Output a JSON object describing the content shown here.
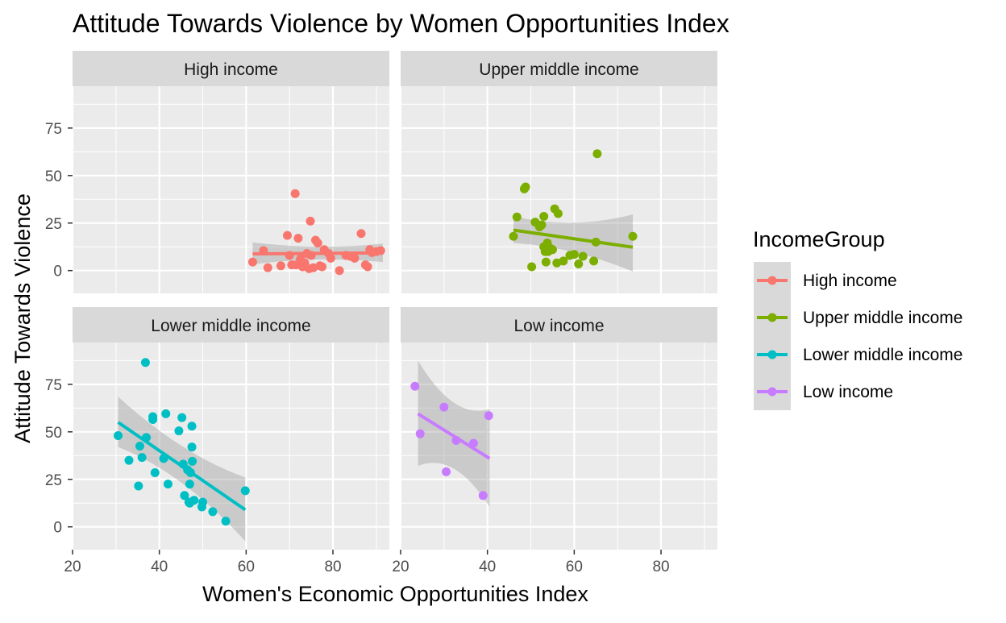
{
  "chart_data": {
    "type": "scatter",
    "title": "Attitude Towards Violence by Women Opportunities Index",
    "xlabel": "Women's Economic Opportunities Index",
    "ylabel": "Attitude Towards Violence",
    "xlim": [
      20,
      93
    ],
    "ylim": [
      -12,
      97
    ],
    "x_ticks": [
      20,
      40,
      60,
      80
    ],
    "y_ticks": [
      0,
      25,
      50,
      75
    ],
    "x_tick_labels": [
      "20",
      "40",
      "60",
      "80"
    ],
    "y_tick_labels": [
      "0",
      "25",
      "50",
      "75"
    ],
    "grid": true,
    "legend": {
      "title": "IncomeGroup",
      "position": "right"
    },
    "colors": {
      "High income": "#F8766D",
      "Upper middle income": "#7CAE00",
      "Lower middle income": "#00BFC4",
      "Low income": "#C77CFF",
      "panel_bg": "#EBEBEB",
      "strip_bg": "#D9D9D9",
      "ribbon": "#999999"
    },
    "series": [
      {
        "name": "High income",
        "fit": {
          "x": [
            61.5,
            91.5
          ],
          "y": [
            8.8,
            9.3
          ],
          "ribbon_lo": [
            3.2,
            4.5
          ],
          "ribbon_hi": [
            14.8,
            14.2
          ],
          "ribbon_mid_lo": 7.8,
          "ribbon_mid_hi": 10.6
        },
        "points": [
          [
            61.5,
            4.5
          ],
          [
            64,
            10.5
          ],
          [
            65,
            1.5
          ],
          [
            68,
            2.5
          ],
          [
            69.5,
            18.5
          ],
          [
            70,
            8
          ],
          [
            70.5,
            3
          ],
          [
            71.3,
            40.5
          ],
          [
            71.5,
            3
          ],
          [
            72,
            17
          ],
          [
            72.5,
            6
          ],
          [
            73,
            2
          ],
          [
            73.5,
            4
          ],
          [
            74,
            9
          ],
          [
            74.5,
            1
          ],
          [
            74.8,
            26
          ],
          [
            75,
            8
          ],
          [
            75.5,
            1.5
          ],
          [
            76,
            16
          ],
          [
            76.5,
            14.5
          ],
          [
            77,
            2.5
          ],
          [
            77.5,
            2
          ],
          [
            78,
            11
          ],
          [
            79,
            9
          ],
          [
            79.5,
            6.5
          ],
          [
            81.5,
            0
          ],
          [
            83,
            8
          ],
          [
            84,
            7.5
          ],
          [
            85,
            6.5
          ],
          [
            86.5,
            19.5
          ],
          [
            87.5,
            3
          ],
          [
            88,
            2
          ],
          [
            88.5,
            11
          ],
          [
            89,
            9.5
          ],
          [
            90,
            10
          ],
          [
            91,
            10.5
          ]
        ]
      },
      {
        "name": "Upper middle income",
        "fit": {
          "x": [
            46,
            73.5
          ],
          "y": [
            21.3,
            12.3
          ],
          "ribbon_lo": [
            14.5,
            -0.5
          ],
          "ribbon_hi": [
            28.5,
            29.5
          ],
          "ribbon_mid_lo": 12.5,
          "ribbon_mid_hi": 21.5
        },
        "points": [
          [
            46,
            18
          ],
          [
            46.8,
            28.2
          ],
          [
            48.5,
            43
          ],
          [
            48.8,
            44
          ],
          [
            50.2,
            2
          ],
          [
            51,
            25.5
          ],
          [
            52,
            23
          ],
          [
            52.5,
            24
          ],
          [
            53,
            12.5
          ],
          [
            53,
            28.5
          ],
          [
            53.3,
            10
          ],
          [
            53.5,
            4.5
          ],
          [
            53.8,
            14.5
          ],
          [
            54,
            10
          ],
          [
            54.3,
            12
          ],
          [
            54.5,
            11.5
          ],
          [
            55,
            11
          ],
          [
            55.5,
            32.5
          ],
          [
            56,
            4
          ],
          [
            56.3,
            30
          ],
          [
            57.5,
            5
          ],
          [
            59,
            8
          ],
          [
            60,
            8.5
          ],
          [
            61,
            3.5
          ],
          [
            62,
            7.5
          ],
          [
            64.5,
            5
          ],
          [
            65,
            15
          ],
          [
            65.3,
            61.5
          ],
          [
            73.5,
            18
          ]
        ]
      },
      {
        "name": "Lower middle income",
        "fit": {
          "x": [
            30.5,
            59.8
          ],
          "y": [
            55,
            9
          ],
          "ribbon_lo": [
            42,
            -7.5
          ],
          "ribbon_hi": [
            68.5,
            26
          ],
          "ribbon_mid_lo": 29,
          "ribbon_mid_hi": 38
        },
        "points": [
          [
            30.5,
            48
          ],
          [
            33,
            35
          ],
          [
            35.2,
            21.5
          ],
          [
            35.5,
            42.5
          ],
          [
            36,
            36.5
          ],
          [
            36.8,
            86.5
          ],
          [
            37,
            47
          ],
          [
            38.5,
            58
          ],
          [
            38.5,
            56.5
          ],
          [
            39,
            28.5
          ],
          [
            41,
            36
          ],
          [
            41.5,
            59.5
          ],
          [
            42,
            22.5
          ],
          [
            44.5,
            50.5
          ],
          [
            45.2,
            57.5
          ],
          [
            45.5,
            33
          ],
          [
            45.8,
            16.5
          ],
          [
            46.5,
            30
          ],
          [
            46.8,
            13
          ],
          [
            47,
            22.5
          ],
          [
            47,
            12.5
          ],
          [
            47.2,
            28.5
          ],
          [
            47.5,
            42
          ],
          [
            47.5,
            53
          ],
          [
            47.6,
            34.5
          ],
          [
            48,
            14
          ],
          [
            49.8,
            10.5
          ],
          [
            50,
            13
          ],
          [
            52.3,
            8
          ],
          [
            55.3,
            3
          ],
          [
            59.8,
            19
          ]
        ]
      },
      {
        "name": "Low income",
        "fit": {
          "x": [
            24,
            40.5
          ],
          "y": [
            59.5,
            36
          ],
          "ribbon_lo": [
            32,
            10.5
          ],
          "ribbon_hi": [
            87.5,
            62
          ],
          "ribbon_mid_lo": 40,
          "ribbon_mid_hi": 56
        },
        "points": [
          [
            23.3,
            74
          ],
          [
            24.5,
            49
          ],
          [
            30,
            63
          ],
          [
            30.5,
            29
          ],
          [
            32.8,
            45.5
          ],
          [
            36.8,
            44
          ],
          [
            39,
            16.5
          ],
          [
            40.3,
            58.5
          ]
        ]
      }
    ],
    "facets": [
      {
        "label": "High income",
        "series": 0
      },
      {
        "label": "Upper middle income",
        "series": 1
      },
      {
        "label": "Lower middle income",
        "series": 2
      },
      {
        "label": "Low income",
        "series": 3
      }
    ]
  }
}
